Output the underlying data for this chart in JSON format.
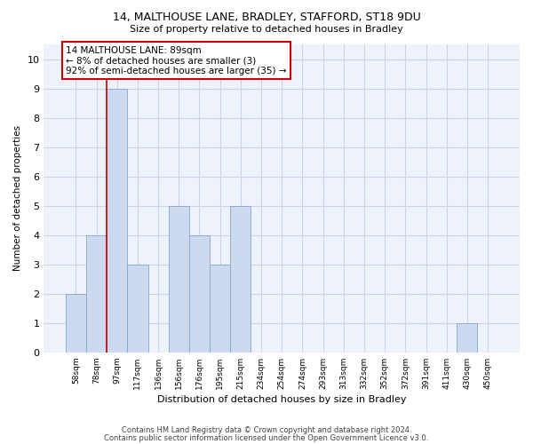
{
  "title_line1": "14, MALTHOUSE LANE, BRADLEY, STAFFORD, ST18 9DU",
  "title_line2": "Size of property relative to detached houses in Bradley",
  "xlabel": "Distribution of detached houses by size in Bradley",
  "ylabel": "Number of detached properties",
  "categories": [
    "58sqm",
    "78sqm",
    "97sqm",
    "117sqm",
    "136sqm",
    "156sqm",
    "176sqm",
    "195sqm",
    "215sqm",
    "234sqm",
    "254sqm",
    "274sqm",
    "293sqm",
    "313sqm",
    "332sqm",
    "352sqm",
    "372sqm",
    "391sqm",
    "411sqm",
    "430sqm",
    "450sqm"
  ],
  "values": [
    2,
    4,
    9,
    3,
    0,
    5,
    4,
    3,
    5,
    0,
    0,
    0,
    0,
    0,
    0,
    0,
    0,
    0,
    0,
    1,
    0
  ],
  "bar_color": "#ccd9ee",
  "bar_edge_color": "#7fa8d0",
  "ylim_max": 10.5,
  "yticks": [
    0,
    1,
    2,
    3,
    4,
    5,
    6,
    7,
    8,
    9,
    10
  ],
  "annotation_text": "14 MALTHOUSE LANE: 89sqm\n← 8% of detached houses are smaller (3)\n92% of semi-detached houses are larger (35) →",
  "annotation_box_color": "#ffffff",
  "annotation_box_edge": "#cc0000",
  "ref_line_color": "#cc0000",
  "footer_line1": "Contains HM Land Registry data © Crown copyright and database right 2024.",
  "footer_line2": "Contains public sector information licensed under the Open Government Licence v3.0.",
  "grid_color": "#c8d4e8",
  "background_color": "#eef2fb"
}
